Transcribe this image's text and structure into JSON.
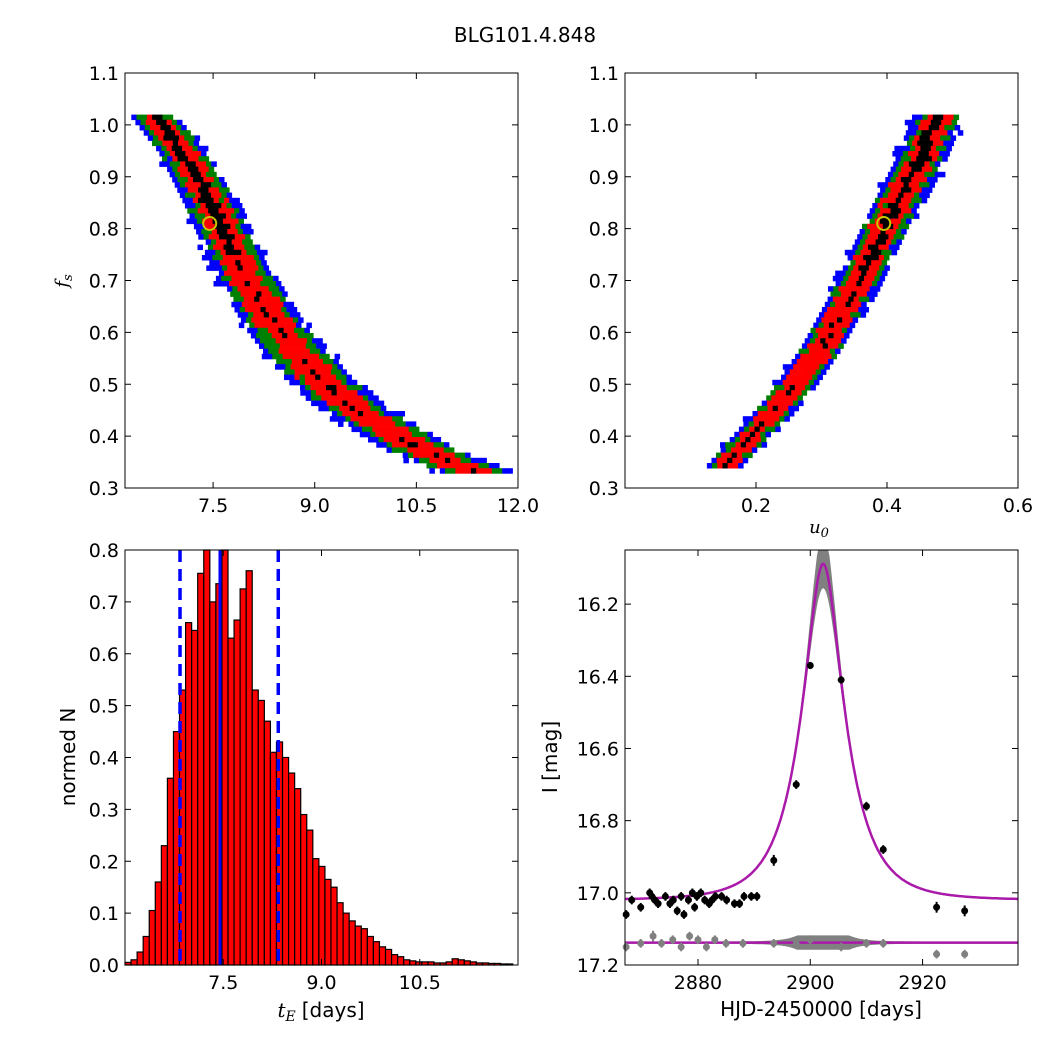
{
  "figure_title": "BLG101.4.848",
  "chart_data": [
    {
      "type": "heatmap",
      "panel": "top-left",
      "ylabel": "f_s",
      "xlim": [
        6.2,
        12.0
      ],
      "ylim": [
        0.3,
        1.1
      ],
      "xticks": [
        "7.5",
        "9.0",
        "10.5",
        "12.0"
      ],
      "yticks": [
        "0.3",
        "0.4",
        "0.5",
        "0.6",
        "0.7",
        "0.8",
        "0.9",
        "1.0",
        "1.1"
      ],
      "levels": [
        {
          "name": "outer",
          "color": "#0000ff"
        },
        {
          "name": "second",
          "color": "#008000"
        },
        {
          "name": "first",
          "color": "#ff0000"
        },
        {
          "name": "core",
          "color": "#000000"
        }
      ],
      "band_centerline": [
        [
          6.6,
          1.02
        ],
        [
          7.05,
          0.95
        ],
        [
          7.5,
          0.84
        ],
        [
          8.0,
          0.7
        ],
        [
          8.5,
          0.6
        ],
        [
          9.0,
          0.52
        ],
        [
          9.5,
          0.46
        ],
        [
          10.0,
          0.42
        ],
        [
          10.5,
          0.38
        ],
        [
          11.0,
          0.35
        ],
        [
          11.4,
          0.33
        ]
      ],
      "best_fit": {
        "x": 7.45,
        "y": 0.81
      },
      "grid": false
    },
    {
      "type": "heatmap",
      "panel": "top-right",
      "xlabel": "u_0",
      "xlim": [
        0.0,
        0.6
      ],
      "ylim": [
        0.3,
        1.1
      ],
      "xticks": [
        "0.2",
        "0.4",
        "0.6"
      ],
      "yticks": [
        "0.3",
        "0.4",
        "0.5",
        "0.6",
        "0.7",
        "0.8",
        "0.9",
        "1.0",
        "1.1"
      ],
      "band_centerline": [
        [
          0.15,
          0.34
        ],
        [
          0.2,
          0.41
        ],
        [
          0.25,
          0.48
        ],
        [
          0.3,
          0.57
        ],
        [
          0.35,
          0.68
        ],
        [
          0.4,
          0.81
        ],
        [
          0.45,
          0.93
        ],
        [
          0.48,
          1.02
        ]
      ],
      "best_fit": {
        "x": 0.395,
        "y": 0.81
      },
      "grid": false
    },
    {
      "type": "bar",
      "panel": "bottom-left",
      "xlabel_var": "t_E",
      "xlabel_unit": "[days]",
      "ylabel": "normed N",
      "xlim": [
        6.0,
        12.0
      ],
      "ylim": [
        0.0,
        0.8
      ],
      "xticks": [
        "7.5",
        "9.0",
        "10.5"
      ],
      "yticks": [
        "0.0",
        "0.1",
        "0.2",
        "0.3",
        "0.4",
        "0.5",
        "0.6",
        "0.7",
        "0.8"
      ],
      "bin_start": 6.0,
      "bin_width": 0.0925,
      "values": [
        0.005,
        0.01,
        0.025,
        0.055,
        0.105,
        0.16,
        0.23,
        0.36,
        0.45,
        0.53,
        0.66,
        0.645,
        0.755,
        0.8,
        0.7,
        0.735,
        0.8,
        0.63,
        0.665,
        0.725,
        0.76,
        0.53,
        0.51,
        0.47,
        0.41,
        0.43,
        0.4,
        0.37,
        0.34,
        0.29,
        0.26,
        0.205,
        0.19,
        0.165,
        0.15,
        0.12,
        0.1,
        0.085,
        0.075,
        0.07,
        0.055,
        0.045,
        0.035,
        0.03,
        0.02,
        0.016,
        0.01,
        0.008,
        0.006,
        0.006,
        0.006,
        0.004,
        0.004,
        0.006,
        0.012,
        0.01,
        0.008,
        0.006,
        0.004,
        0.004,
        0.003,
        0.003,
        0.002,
        0.002
      ],
      "bar_color": "#ff0000",
      "lines": {
        "median": 7.45,
        "lower": 6.84,
        "upper": 8.34,
        "color": "#0000ff"
      },
      "grid": false
    },
    {
      "type": "line",
      "panel": "bottom-right",
      "xlabel": "HJD-2450000 [days]",
      "ylabel": "I [mag]",
      "xlim": [
        2867,
        2937
      ],
      "ylim": [
        17.2,
        16.05
      ],
      "xticks": [
        "2880",
        "2900",
        "2920"
      ],
      "yticks": [
        "16.2",
        "16.4",
        "16.6",
        "16.8",
        "17.0",
        "17.2"
      ],
      "model": {
        "t0": 2902.3,
        "tE": 7.45,
        "u0": 0.395,
        "fs": 0.81,
        "baseline": 17.02,
        "color": "#aa1aaa"
      },
      "residual_baseline": 17.138,
      "series": [
        {
          "name": "data",
          "color": "#000000",
          "points": [
            [
              2867.2,
              17.06,
              0.012
            ],
            [
              2868.2,
              17.02,
              0.012
            ],
            [
              2869.8,
              17.04,
              0.012
            ],
            [
              2871.4,
              17.0,
              0.012
            ],
            [
              2871.8,
              17.01,
              0.012
            ],
            [
              2872.3,
              17.02,
              0.012
            ],
            [
              2872.9,
              17.03,
              0.012
            ],
            [
              2874.2,
              17.01,
              0.012
            ],
            [
              2875.0,
              17.03,
              0.012
            ],
            [
              2875.6,
              17.02,
              0.012
            ],
            [
              2876.3,
              17.05,
              0.012
            ],
            [
              2877.0,
              17.01,
              0.012
            ],
            [
              2877.5,
              17.06,
              0.012
            ],
            [
              2878.3,
              17.02,
              0.012
            ],
            [
              2879.0,
              17.0,
              0.012
            ],
            [
              2879.4,
              17.04,
              0.012
            ],
            [
              2879.8,
              17.01,
              0.012
            ],
            [
              2880.5,
              17.0,
              0.012
            ],
            [
              2881.2,
              17.02,
              0.012
            ],
            [
              2882.0,
              17.03,
              0.012
            ],
            [
              2882.5,
              17.02,
              0.012
            ],
            [
              2883.1,
              17.01,
              0.012
            ],
            [
              2884.2,
              17.01,
              0.012
            ],
            [
              2885.1,
              17.02,
              0.012
            ],
            [
              2886.5,
              17.03,
              0.012
            ],
            [
              2887.4,
              17.03,
              0.012
            ],
            [
              2888.2,
              17.01,
              0.012
            ],
            [
              2889.5,
              17.01,
              0.012
            ],
            [
              2890.5,
              17.01,
              0.012
            ],
            [
              2893.5,
              16.91,
              0.015
            ],
            [
              2897.5,
              16.7,
              0.012
            ],
            [
              2900.0,
              16.37,
              0.01
            ],
            [
              2905.5,
              16.41,
              0.01
            ],
            [
              2910.0,
              16.76,
              0.012
            ],
            [
              2913.0,
              16.88,
              0.012
            ],
            [
              2922.5,
              17.04,
              0.015
            ],
            [
              2927.5,
              17.05,
              0.015
            ]
          ]
        },
        {
          "name": "residuals",
          "color": "#808080",
          "points": [
            [
              2867.2,
              17.15,
              0.012
            ],
            [
              2869.8,
              17.14,
              0.012
            ],
            [
              2872.0,
              17.12,
              0.015
            ],
            [
              2873.5,
              17.14,
              0.012
            ],
            [
              2875.5,
              17.13,
              0.012
            ],
            [
              2877.0,
              17.15,
              0.012
            ],
            [
              2878.5,
              17.12,
              0.012
            ],
            [
              2880.0,
              17.13,
              0.012
            ],
            [
              2881.5,
              17.15,
              0.012
            ],
            [
              2883.0,
              17.13,
              0.012
            ],
            [
              2885.0,
              17.14,
              0.012
            ],
            [
              2888.0,
              17.14,
              0.012
            ],
            [
              2893.5,
              17.14,
              0.012
            ],
            [
              2897.5,
              17.14,
              0.012
            ],
            [
              2900.0,
              17.13,
              0.012
            ],
            [
              2905.5,
              17.15,
              0.012
            ],
            [
              2910.0,
              17.14,
              0.012
            ],
            [
              2913.0,
              17.14,
              0.012
            ],
            [
              2922.5,
              17.17,
              0.012
            ],
            [
              2927.5,
              17.17,
              0.012
            ]
          ]
        }
      ],
      "grid": false
    }
  ]
}
